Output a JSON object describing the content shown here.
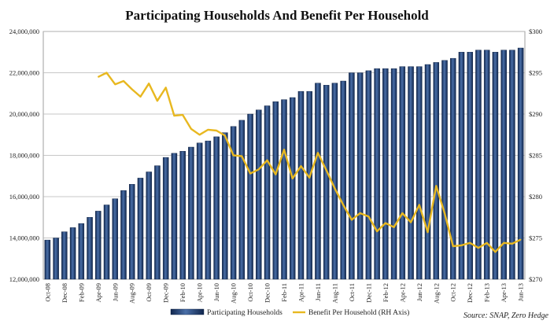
{
  "chart_data": {
    "type": "bar",
    "title": "Participating Households And Benefit Per Household",
    "source": "Source: SNAP, Zero Hedge",
    "categories": [
      "Oct-08",
      "Nov-08",
      "Dec-08",
      "Jan-09",
      "Feb-09",
      "Mar-09",
      "Apr-09",
      "May-09",
      "Jun-09",
      "Jul-09",
      "Aug-09",
      "Sep-09",
      "Oct-09",
      "Nov-09",
      "Dec-09",
      "Jan-10",
      "Feb-10",
      "Mar-10",
      "Apr-10",
      "May-10",
      "Jun-10",
      "Jul-10",
      "Aug-10",
      "Sep-10",
      "Oct-10",
      "Nov-10",
      "Dec-10",
      "Jan-11",
      "Feb-11",
      "Mar-11",
      "Apr-11",
      "May-11",
      "Jun-11",
      "Jul-11",
      "Aug-11",
      "Sep-11",
      "Oct-11",
      "Nov-11",
      "Dec-11",
      "Jan-12",
      "Feb-12",
      "Mar-12",
      "Apr-12",
      "May-12",
      "Jun-12",
      "Jul-12",
      "Aug-12",
      "Sep-12",
      "Oct-12",
      "Nov-12",
      "Dec-12",
      "Jan-13",
      "Feb-13",
      "Mar-13",
      "Apr-13",
      "May-13",
      "Jun-13"
    ],
    "tick_labels": [
      "Oct-08",
      "Dec-08",
      "Feb-09",
      "Apr-09",
      "Jun-09",
      "Aug-09",
      "Oct-09",
      "Dec-09",
      "Feb-10",
      "Apr-10",
      "Jun-10",
      "Aug-10",
      "Oct-10",
      "Dec-10",
      "Feb-11",
      "Apr-11",
      "Jun-11",
      "Aug-11",
      "Oct-11",
      "Dec-11",
      "Feb-12",
      "Apr-12",
      "Jun-12",
      "Aug-12",
      "Oct-12",
      "Dec-12",
      "Feb-13",
      "Apr-13",
      "Jun-13"
    ],
    "left_axis": {
      "ylim": [
        12000000,
        24000000
      ],
      "ticks": [
        12000000,
        14000000,
        16000000,
        18000000,
        20000000,
        22000000,
        24000000
      ],
      "tick_labels": [
        "12,000,000",
        "14,000,000",
        "16,000,000",
        "18,000,000",
        "20,000,000",
        "22,000,000",
        "24,000,000"
      ]
    },
    "right_axis": {
      "ylim": [
        270,
        300
      ],
      "ticks": [
        270,
        275,
        280,
        285,
        290,
        295,
        300
      ],
      "tick_labels": [
        "$270",
        "$275",
        "$280",
        "$285",
        "$290",
        "$295",
        "$300"
      ]
    },
    "grid": true,
    "legend_position": "bottom",
    "series": [
      {
        "name": "Participating Households",
        "type": "bar",
        "axis": "left",
        "color": "#1f3f76",
        "values": [
          13900000,
          14000000,
          14300000,
          14500000,
          14700000,
          15000000,
          15300000,
          15600000,
          15900000,
          16300000,
          16600000,
          16900000,
          17200000,
          17500000,
          17900000,
          18100000,
          18200000,
          18400000,
          18600000,
          18700000,
          18900000,
          19100000,
          19400000,
          19700000,
          20000000,
          20200000,
          20400000,
          20600000,
          20700000,
          20800000,
          21100000,
          21100000,
          21500000,
          21400000,
          21500000,
          21600000,
          22000000,
          22000000,
          22100000,
          22200000,
          22200000,
          22200000,
          22300000,
          22300000,
          22300000,
          22400000,
          22500000,
          22600000,
          22700000,
          23000000,
          23000000,
          23100000,
          23100000,
          23000000,
          23100000,
          23100000,
          23200000
        ]
      },
      {
        "name": "Benefit Per Household (RH Axis)",
        "type": "line",
        "axis": "right",
        "color": "#e8b820",
        "x": [
          6,
          7,
          8,
          9,
          10,
          11,
          12,
          13,
          14,
          15,
          16,
          17,
          18,
          19,
          20,
          21,
          22,
          23,
          24,
          25,
          26,
          27,
          28,
          29,
          30,
          31,
          32,
          33,
          34,
          35,
          36,
          37,
          38,
          39,
          40,
          41,
          42,
          43,
          44,
          45,
          46,
          47,
          48,
          49,
          50,
          51,
          52,
          53,
          54,
          55,
          56
        ],
        "values": [
          294.5,
          295.0,
          293.6,
          294.0,
          293.0,
          292.1,
          293.7,
          291.6,
          293.2,
          289.8,
          289.9,
          288.2,
          287.5,
          288.1,
          288.0,
          287.4,
          285.0,
          284.9,
          282.8,
          283.3,
          284.4,
          282.7,
          285.7,
          282.2,
          283.7,
          282.3,
          285.3,
          283.2,
          281.0,
          279.0,
          277.2,
          278.0,
          277.6,
          275.8,
          276.8,
          276.3,
          278.0,
          276.9,
          279.0,
          275.7,
          281.3,
          278.0,
          274.0,
          274.1,
          274.4,
          273.8,
          274.4,
          273.3,
          274.4,
          274.3,
          274.8
        ]
      }
    ]
  }
}
